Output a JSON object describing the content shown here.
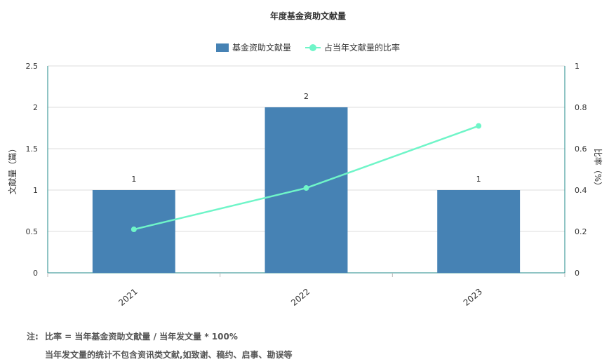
{
  "chart_data": {
    "type": "bar+line",
    "title": "年度基金资助文献量",
    "categories": [
      "2021",
      "2022",
      "2023"
    ],
    "series": [
      {
        "name": "基金资助文献量",
        "type": "bar",
        "axis": "left",
        "color": "#4682b4",
        "values": [
          1,
          2,
          1
        ],
        "labels": [
          "1",
          "2",
          "1"
        ]
      },
      {
        "name": "占当年文献量的比率",
        "type": "line",
        "axis": "right",
        "color": "#6ff5c8",
        "values": [
          0.21,
          0.41,
          0.71
        ]
      }
    ],
    "y_left": {
      "label": "文献量（篇）",
      "min": 0,
      "max": 2.5,
      "ticks": [
        "0",
        "0.5",
        "1",
        "1.5",
        "2",
        "2.5"
      ]
    },
    "y_right": {
      "label": "比率（%）",
      "min": 0,
      "max": 1,
      "ticks": [
        "0",
        "0.2",
        "0.4",
        "0.6",
        "0.8",
        "1"
      ]
    },
    "grid": true,
    "legend": "top-center"
  },
  "notes": {
    "prefix": "注:",
    "line1": "比率 = 当年基金资助文献量 / 当年发文量 * 100%",
    "line2": "当年发文量的统计不包含资讯类文献,如致谢、稿约、启事、勘误等"
  }
}
